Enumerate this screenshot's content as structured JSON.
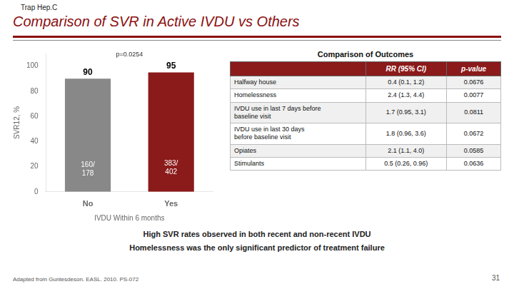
{
  "chart_data": {
    "type": "bar",
    "title": "Comparison of SVR in Active IVDU vs Others",
    "subtitle": "Trap Hep.C",
    "xlabel": "IVDU Within 6 months",
    "ylabel": "SVR12, %",
    "categories": [
      "No",
      "Yes"
    ],
    "values": [
      90,
      95
    ],
    "colors": [
      "#888888",
      "#8b1a1a"
    ],
    "ylim": [
      0,
      110
    ],
    "yticks": [
      0,
      20,
      40,
      60,
      80,
      100
    ],
    "grid": false,
    "data_labels": true,
    "annotations": [
      {
        "text": "p=0.0254"
      },
      {
        "text": "160/\n178",
        "category": "No"
      },
      {
        "text": "383/\n402",
        "category": "Yes"
      }
    ]
  },
  "table": {
    "title": "Comparison of Outcomes",
    "header": [
      null,
      "RR (95% CI)",
      "p-value"
    ],
    "rows": [
      [
        "Halfway house",
        "0.4 (0.1, 1.2)",
        "0.0676"
      ],
      [
        "Homelessness",
        "2.4 (1.3, 4.4)",
        "0.0077"
      ],
      [
        "IVDU use in last 7 days before\nbaseline visit",
        "1.7 (0.95, 3.1)",
        "0.0811"
      ],
      [
        "IVDU use in last 30 days\nbefore baseline visit",
        "1.8 (0.96, 3.6)",
        "0.0672"
      ],
      [
        "Opiates",
        "2.1 (1.1, 4.0)",
        "0.0585"
      ],
      [
        "Stimulants",
        "0.5 (0.26, 0.96)",
        "0.0636"
      ]
    ]
  },
  "notes": [
    "High SVR rates observed in both recent and non-recent IVDU",
    "Homelessness was the only significant predictor of treatment failure"
  ],
  "footnote": "Adapted from Guntesdeson. EASL. 2010. PS-072",
  "slide_number": "31"
}
